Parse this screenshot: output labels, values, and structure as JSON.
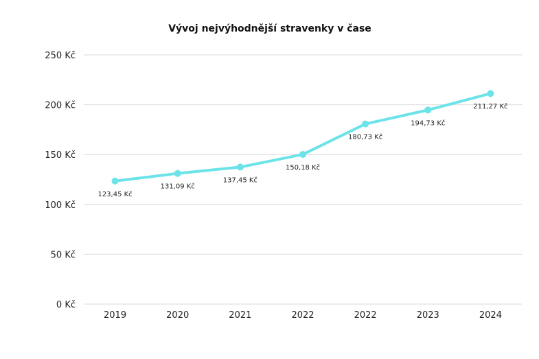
{
  "chart_data": {
    "type": "line",
    "title": "Vývoj nejvýhodnější stravenky v čase",
    "categories": [
      "2019",
      "2020",
      "2021",
      "2022",
      "2022",
      "2023",
      "2024"
    ],
    "series": [
      {
        "values": [
          123.45,
          131.09,
          137.45,
          150.18,
          180.73,
          194.73,
          211.27
        ]
      }
    ],
    "data_labels": [
      "123,45 Kč",
      "131,09 Kč",
      "137,45 Kč",
      "150,18 Kč",
      "180,73 Kč",
      "194,73 Kč",
      "211,27 Kč"
    ],
    "yticks": [
      0,
      50,
      100,
      150,
      200,
      250
    ],
    "ytick_labels": [
      "0 Kč",
      "50 Kč",
      "100 Kč",
      "150 Kč",
      "200 Kč",
      "250 Kč"
    ],
    "ylim": [
      0,
      250
    ],
    "grid": true,
    "legend": "none",
    "line_color": "#6ce3e8",
    "grid_color": "#d9d9d9"
  }
}
